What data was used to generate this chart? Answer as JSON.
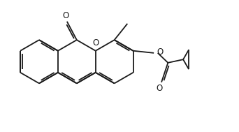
{
  "bg_color": "#ffffff",
  "line_color": "#1a1a1a",
  "lw": 1.3,
  "dbo": 0.08,
  "figsize": [
    3.42,
    1.89
  ],
  "dpi": 100,
  "xlim": [
    -1.8,
    9.2
  ],
  "ylim": [
    -3.2,
    2.8
  ],
  "O_label_fontsize": 8.5
}
